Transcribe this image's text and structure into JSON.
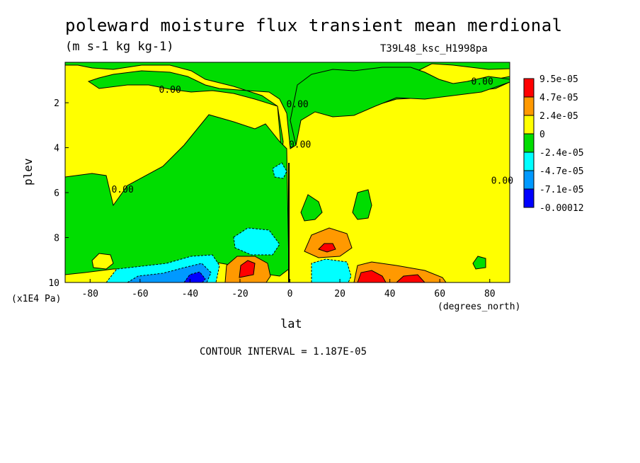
{
  "chart_data": {
    "type": "heatmap",
    "title": "poleward moisture flux transient mean merdional",
    "units": "(m s-1 kg kg-1)",
    "run_label": "T39L48_ksc_H1998pa",
    "xlabel": "lat",
    "x_unit_label": "(degrees_north)",
    "ylabel": "plev",
    "y_unit_label": "(x1E4 Pa)",
    "xlim": [
      -90,
      88
    ],
    "ylim": [
      10,
      0.2
    ],
    "x_ticks": [
      -80,
      -60,
      -40,
      -20,
      0,
      20,
      40,
      60,
      80
    ],
    "y_ticks": [
      2,
      4,
      6,
      8,
      10
    ],
    "contour_interval": "CONTOUR INTERVAL = 1.187E-05",
    "colorbar": {
      "labels": [
        "9.5e-05",
        "4.7e-05",
        "2.4e-05",
        "0",
        "-2.4e-05",
        "-4.7e-05",
        "-7.1e-05",
        "-0.00012"
      ],
      "colors": [
        "#ff0000",
        "#ff9900",
        "#ffff00",
        "#00dd00",
        "#00ffff",
        "#0099ff",
        "#0000ff"
      ]
    },
    "contour_labels": [
      {
        "text": "0.00",
        "lat": -48,
        "plev": 1.55
      },
      {
        "text": "0.00",
        "lat": 77,
        "plev": 1.2
      },
      {
        "text": "0.00",
        "lat": 3,
        "plev": 2.2
      },
      {
        "text": "0.00",
        "lat": 4,
        "plev": 4.0
      },
      {
        "text": "0.00",
        "lat": -67,
        "plev": 6.0
      },
      {
        "text": "0.00",
        "lat": 85,
        "plev": 5.6
      }
    ],
    "regions_approx": {
      "yellow_background": "0 to 2.4e-05 over most of the domain",
      "green_upper_band": "-2.4e-05 to 0 near the top (plev 0.2-1.5) and north of equator aloft",
      "green_southern_mid": "-2.4e-05 to 0 between lat -90 and 0, plev 3-9",
      "cyan_blue_south_low": "negative values near lat -50 to -20, plev 9-10",
      "red_orange_south_low": "positive maximum near lat -17, plev 9.5",
      "orange_north_mid": "positive maximum near lat 15, plev 8.5",
      "red_orange_north_low": "positive maximum near lat 30-50, plev 9.5-10",
      "cyan_north_low": "negative values near lat 10-25, plev 9.5"
    }
  }
}
